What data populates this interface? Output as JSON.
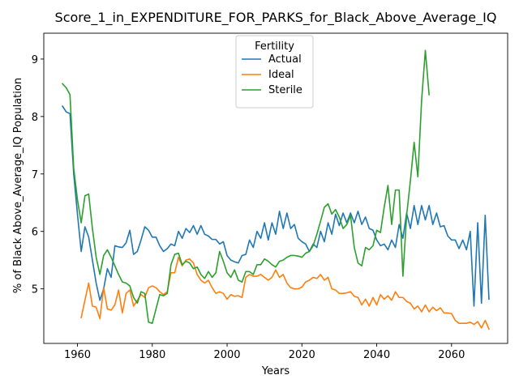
{
  "chart_data": {
    "type": "line",
    "title": "Score_1_in_EXPENDITURE_FOR_PARKS_for_Black_Above_Average_IQ",
    "xlabel": "Years",
    "ylabel": "% of Black Above_Average_IQ Population",
    "xlim": [
      1951,
      2075
    ],
    "ylim": [
      4.05,
      9.45
    ],
    "xticks": [
      1960,
      1980,
      2000,
      2020,
      2040,
      2060
    ],
    "yticks": [
      5,
      6,
      7,
      8,
      9
    ],
    "grid": false,
    "legend": {
      "title": "Fertility",
      "placement": "top-center"
    },
    "series": [
      {
        "name": "Actual",
        "color": "#1f77b4",
        "x": [
          1956,
          1957,
          1958,
          1959,
          1960,
          1961,
          1962,
          1963,
          1964,
          1965,
          1966,
          1967,
          1968,
          1969,
          1970,
          1971,
          1972,
          1973,
          1974,
          1975,
          1976,
          1977,
          1978,
          1979,
          1980,
          1981,
          1982,
          1983,
          1984,
          1985,
          1986,
          1987,
          1988,
          1989,
          1990,
          1991,
          1992,
          1993,
          1994,
          1995,
          1996,
          1997,
          1998,
          1999,
          2000,
          2001,
          2002,
          2003,
          2004,
          2005,
          2006,
          2007,
          2008,
          2009,
          2010,
          2011,
          2012,
          2013,
          2014,
          2015,
          2016,
          2017,
          2018,
          2019,
          2020,
          2021,
          2022,
          2023,
          2024,
          2025,
          2026,
          2027,
          2028,
          2029,
          2030,
          2031,
          2032,
          2033,
          2034,
          2035,
          2036,
          2037,
          2038,
          2039,
          2040,
          2041,
          2042,
          2043,
          2044,
          2045,
          2046,
          2047,
          2048,
          2049,
          2050,
          2051,
          2052,
          2053,
          2054,
          2055,
          2056,
          2057,
          2058,
          2059,
          2060,
          2061,
          2062,
          2063,
          2064,
          2065,
          2066,
          2067,
          2068,
          2069,
          2070
        ],
        "values": [
          8.18,
          8.08,
          8.05,
          7.0,
          6.3,
          5.65,
          6.08,
          5.9,
          5.5,
          5.1,
          4.8,
          5.0,
          5.35,
          5.2,
          5.75,
          5.73,
          5.72,
          5.8,
          6.02,
          5.6,
          5.65,
          5.85,
          6.08,
          6.02,
          5.9,
          5.9,
          5.75,
          5.65,
          5.7,
          5.78,
          5.75,
          6.0,
          5.88,
          6.05,
          5.98,
          6.1,
          5.95,
          6.1,
          5.95,
          5.92,
          5.86,
          5.86,
          5.78,
          5.82,
          5.58,
          5.5,
          5.47,
          5.45,
          5.58,
          5.6,
          5.85,
          5.72,
          6.0,
          5.88,
          6.15,
          5.85,
          6.15,
          5.95,
          6.35,
          6.05,
          6.32,
          6.05,
          6.12,
          5.88,
          5.82,
          5.78,
          5.65,
          5.78,
          5.72,
          6.0,
          5.82,
          6.15,
          5.95,
          6.3,
          6.1,
          6.32,
          6.15,
          6.32,
          6.15,
          6.35,
          6.12,
          6.25,
          6.05,
          6.02,
          5.85,
          5.75,
          5.78,
          5.68,
          5.85,
          5.72,
          6.12,
          5.88,
          6.32,
          6.05,
          6.45,
          6.12,
          6.45,
          6.2,
          6.45,
          6.12,
          6.32,
          6.08,
          6.1,
          5.92,
          5.85,
          5.85,
          5.7,
          5.85,
          5.68,
          6.0,
          4.7,
          6.15,
          4.75,
          6.28,
          4.82
        ]
      },
      {
        "name": "Ideal",
        "color": "#ff7f0e",
        "x": [
          1961,
          1962,
          1963,
          1964,
          1965,
          1966,
          1967,
          1968,
          1969,
          1970,
          1971,
          1972,
          1973,
          1974,
          1975,
          1976,
          1977,
          1978,
          1979,
          1980,
          1981,
          1982,
          1983,
          1984,
          1985,
          1986,
          1987,
          1988,
          1989,
          1990,
          1991,
          1992,
          1993,
          1994,
          1995,
          1996,
          1997,
          1998,
          1999,
          2000,
          2001,
          2002,
          2003,
          2004,
          2005,
          2006,
          2007,
          2008,
          2009,
          2010,
          2011,
          2012,
          2013,
          2014,
          2015,
          2016,
          2017,
          2018,
          2019,
          2020,
          2021,
          2022,
          2023,
          2024,
          2025,
          2026,
          2027,
          2028,
          2029,
          2030,
          2031,
          2032,
          2033,
          2034,
          2035,
          2036,
          2037,
          2038,
          2039,
          2040,
          2041,
          2042,
          2043,
          2044,
          2045,
          2046,
          2047,
          2048,
          2049,
          2050,
          2051,
          2052,
          2053,
          2054,
          2055,
          2056,
          2057,
          2058,
          2059,
          2060,
          2061,
          2062,
          2063,
          2064,
          2065,
          2066,
          2067,
          2068,
          2069,
          2070
        ],
        "values": [
          4.5,
          4.8,
          5.1,
          4.7,
          4.68,
          4.48,
          5.02,
          4.65,
          4.63,
          4.72,
          4.98,
          4.58,
          4.92,
          4.98,
          4.7,
          4.8,
          4.9,
          4.85,
          5.02,
          5.05,
          5.02,
          4.95,
          4.9,
          4.95,
          5.28,
          5.28,
          5.55,
          5.4,
          5.5,
          5.52,
          5.45,
          5.25,
          5.15,
          5.1,
          5.15,
          5.02,
          4.92,
          4.95,
          4.92,
          4.82,
          4.9,
          4.87,
          4.88,
          4.85,
          5.2,
          5.25,
          5.22,
          5.22,
          5.25,
          5.2,
          5.15,
          5.2,
          5.33,
          5.2,
          5.25,
          5.1,
          5.02,
          5.0,
          5.0,
          5.03,
          5.12,
          5.15,
          5.2,
          5.18,
          5.25,
          5.15,
          5.2,
          5.0,
          4.98,
          4.92,
          4.92,
          4.93,
          4.95,
          4.87,
          4.85,
          4.72,
          4.82,
          4.7,
          4.85,
          4.72,
          4.9,
          4.82,
          4.88,
          4.8,
          4.95,
          4.85,
          4.85,
          4.78,
          4.75,
          4.65,
          4.7,
          4.6,
          4.72,
          4.6,
          4.68,
          4.62,
          4.67,
          4.58,
          4.58,
          4.57,
          4.45,
          4.4,
          4.4,
          4.4,
          4.42,
          4.38,
          4.43,
          4.32,
          4.45,
          4.3
        ]
      },
      {
        "name": "Sterile",
        "color": "#2ca02c",
        "x": [
          1956,
          1957,
          1958,
          1959,
          1960,
          1961,
          1962,
          1963,
          1964,
          1965,
          1966,
          1967,
          1968,
          1969,
          1970,
          1971,
          1972,
          1973,
          1974,
          1975,
          1976,
          1977,
          1978,
          1979,
          1980,
          1981,
          1982,
          1983,
          1984,
          1985,
          1986,
          1987,
          1988,
          1989,
          1990,
          1991,
          1992,
          1993,
          1994,
          1995,
          1996,
          1997,
          1998,
          1999,
          2000,
          2001,
          2002,
          2003,
          2004,
          2005,
          2006,
          2007,
          2008,
          2009,
          2010,
          2011,
          2012,
          2013,
          2014,
          2015,
          2016,
          2017,
          2018,
          2019,
          2020,
          2021,
          2022,
          2023,
          2024,
          2025,
          2026,
          2027,
          2028,
          2029,
          2030,
          2031,
          2032,
          2033,
          2034,
          2035,
          2036,
          2037,
          2038,
          2039,
          2040,
          2041,
          2042,
          2043,
          2044,
          2045,
          2046,
          2047,
          2048,
          2049,
          2050,
          2051,
          2052,
          2053,
          2054
        ],
        "values": [
          8.57,
          8.5,
          8.38,
          7.1,
          6.55,
          6.15,
          6.62,
          6.65,
          6.05,
          5.55,
          5.25,
          5.58,
          5.68,
          5.55,
          5.4,
          5.25,
          5.12,
          5.1,
          5.05,
          4.85,
          4.75,
          4.95,
          4.92,
          4.42,
          4.4,
          4.65,
          4.9,
          4.88,
          4.92,
          5.42,
          5.6,
          5.62,
          5.42,
          5.48,
          5.45,
          5.35,
          5.38,
          5.25,
          5.18,
          5.3,
          5.2,
          5.28,
          5.65,
          5.48,
          5.28,
          5.2,
          5.33,
          5.15,
          5.12,
          5.3,
          5.3,
          5.25,
          5.42,
          5.42,
          5.52,
          5.48,
          5.42,
          5.38,
          5.48,
          5.5,
          5.55,
          5.58,
          5.58,
          5.57,
          5.55,
          5.62,
          5.65,
          5.75,
          5.95,
          6.18,
          6.42,
          6.48,
          6.3,
          6.38,
          6.25,
          6.05,
          6.12,
          6.28,
          5.72,
          5.45,
          5.4,
          5.72,
          5.68,
          5.75,
          6.02,
          5.98,
          6.42,
          6.8,
          6.12,
          6.72,
          6.72,
          5.22,
          6.28,
          6.88,
          7.55,
          6.95,
          8.28,
          9.15,
          8.38
        ]
      }
    ]
  }
}
